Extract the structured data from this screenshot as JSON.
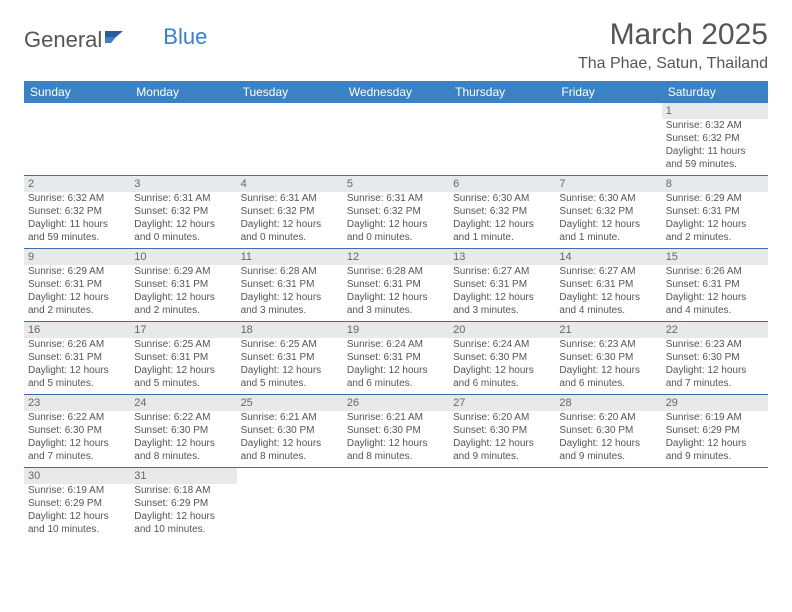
{
  "logo": {
    "general": "General",
    "blue": "Blue"
  },
  "title": "March 2025",
  "location": "Tha Phae, Satun, Thailand",
  "colors": {
    "header_bg": "#3b82c4",
    "header_text": "#ffffff",
    "daynum_bg": "#e8e9ea",
    "row_border": "#3b6fa8",
    "body_text": "#555555",
    "page_bg": "#ffffff"
  },
  "layout": {
    "columns": 7,
    "rows": 6
  },
  "dayHeaders": [
    "Sunday",
    "Monday",
    "Tuesday",
    "Wednesday",
    "Thursday",
    "Friday",
    "Saturday"
  ],
  "weeks": [
    [
      {
        "n": "",
        "sr": "",
        "ss": "",
        "dl": ""
      },
      {
        "n": "",
        "sr": "",
        "ss": "",
        "dl": ""
      },
      {
        "n": "",
        "sr": "",
        "ss": "",
        "dl": ""
      },
      {
        "n": "",
        "sr": "",
        "ss": "",
        "dl": ""
      },
      {
        "n": "",
        "sr": "",
        "ss": "",
        "dl": ""
      },
      {
        "n": "",
        "sr": "",
        "ss": "",
        "dl": ""
      },
      {
        "n": "1",
        "sr": "Sunrise: 6:32 AM",
        "ss": "Sunset: 6:32 PM",
        "dl": "Daylight: 11 hours and 59 minutes."
      }
    ],
    [
      {
        "n": "2",
        "sr": "Sunrise: 6:32 AM",
        "ss": "Sunset: 6:32 PM",
        "dl": "Daylight: 11 hours and 59 minutes."
      },
      {
        "n": "3",
        "sr": "Sunrise: 6:31 AM",
        "ss": "Sunset: 6:32 PM",
        "dl": "Daylight: 12 hours and 0 minutes."
      },
      {
        "n": "4",
        "sr": "Sunrise: 6:31 AM",
        "ss": "Sunset: 6:32 PM",
        "dl": "Daylight: 12 hours and 0 minutes."
      },
      {
        "n": "5",
        "sr": "Sunrise: 6:31 AM",
        "ss": "Sunset: 6:32 PM",
        "dl": "Daylight: 12 hours and 0 minutes."
      },
      {
        "n": "6",
        "sr": "Sunrise: 6:30 AM",
        "ss": "Sunset: 6:32 PM",
        "dl": "Daylight: 12 hours and 1 minute."
      },
      {
        "n": "7",
        "sr": "Sunrise: 6:30 AM",
        "ss": "Sunset: 6:32 PM",
        "dl": "Daylight: 12 hours and 1 minute."
      },
      {
        "n": "8",
        "sr": "Sunrise: 6:29 AM",
        "ss": "Sunset: 6:31 PM",
        "dl": "Daylight: 12 hours and 2 minutes."
      }
    ],
    [
      {
        "n": "9",
        "sr": "Sunrise: 6:29 AM",
        "ss": "Sunset: 6:31 PM",
        "dl": "Daylight: 12 hours and 2 minutes."
      },
      {
        "n": "10",
        "sr": "Sunrise: 6:29 AM",
        "ss": "Sunset: 6:31 PM",
        "dl": "Daylight: 12 hours and 2 minutes."
      },
      {
        "n": "11",
        "sr": "Sunrise: 6:28 AM",
        "ss": "Sunset: 6:31 PM",
        "dl": "Daylight: 12 hours and 3 minutes."
      },
      {
        "n": "12",
        "sr": "Sunrise: 6:28 AM",
        "ss": "Sunset: 6:31 PM",
        "dl": "Daylight: 12 hours and 3 minutes."
      },
      {
        "n": "13",
        "sr": "Sunrise: 6:27 AM",
        "ss": "Sunset: 6:31 PM",
        "dl": "Daylight: 12 hours and 3 minutes."
      },
      {
        "n": "14",
        "sr": "Sunrise: 6:27 AM",
        "ss": "Sunset: 6:31 PM",
        "dl": "Daylight: 12 hours and 4 minutes."
      },
      {
        "n": "15",
        "sr": "Sunrise: 6:26 AM",
        "ss": "Sunset: 6:31 PM",
        "dl": "Daylight: 12 hours and 4 minutes."
      }
    ],
    [
      {
        "n": "16",
        "sr": "Sunrise: 6:26 AM",
        "ss": "Sunset: 6:31 PM",
        "dl": "Daylight: 12 hours and 5 minutes."
      },
      {
        "n": "17",
        "sr": "Sunrise: 6:25 AM",
        "ss": "Sunset: 6:31 PM",
        "dl": "Daylight: 12 hours and 5 minutes."
      },
      {
        "n": "18",
        "sr": "Sunrise: 6:25 AM",
        "ss": "Sunset: 6:31 PM",
        "dl": "Daylight: 12 hours and 5 minutes."
      },
      {
        "n": "19",
        "sr": "Sunrise: 6:24 AM",
        "ss": "Sunset: 6:31 PM",
        "dl": "Daylight: 12 hours and 6 minutes."
      },
      {
        "n": "20",
        "sr": "Sunrise: 6:24 AM",
        "ss": "Sunset: 6:30 PM",
        "dl": "Daylight: 12 hours and 6 minutes."
      },
      {
        "n": "21",
        "sr": "Sunrise: 6:23 AM",
        "ss": "Sunset: 6:30 PM",
        "dl": "Daylight: 12 hours and 6 minutes."
      },
      {
        "n": "22",
        "sr": "Sunrise: 6:23 AM",
        "ss": "Sunset: 6:30 PM",
        "dl": "Daylight: 12 hours and 7 minutes."
      }
    ],
    [
      {
        "n": "23",
        "sr": "Sunrise: 6:22 AM",
        "ss": "Sunset: 6:30 PM",
        "dl": "Daylight: 12 hours and 7 minutes."
      },
      {
        "n": "24",
        "sr": "Sunrise: 6:22 AM",
        "ss": "Sunset: 6:30 PM",
        "dl": "Daylight: 12 hours and 8 minutes."
      },
      {
        "n": "25",
        "sr": "Sunrise: 6:21 AM",
        "ss": "Sunset: 6:30 PM",
        "dl": "Daylight: 12 hours and 8 minutes."
      },
      {
        "n": "26",
        "sr": "Sunrise: 6:21 AM",
        "ss": "Sunset: 6:30 PM",
        "dl": "Daylight: 12 hours and 8 minutes."
      },
      {
        "n": "27",
        "sr": "Sunrise: 6:20 AM",
        "ss": "Sunset: 6:30 PM",
        "dl": "Daylight: 12 hours and 9 minutes."
      },
      {
        "n": "28",
        "sr": "Sunrise: 6:20 AM",
        "ss": "Sunset: 6:30 PM",
        "dl": "Daylight: 12 hours and 9 minutes."
      },
      {
        "n": "29",
        "sr": "Sunrise: 6:19 AM",
        "ss": "Sunset: 6:29 PM",
        "dl": "Daylight: 12 hours and 9 minutes."
      }
    ],
    [
      {
        "n": "30",
        "sr": "Sunrise: 6:19 AM",
        "ss": "Sunset: 6:29 PM",
        "dl": "Daylight: 12 hours and 10 minutes."
      },
      {
        "n": "31",
        "sr": "Sunrise: 6:18 AM",
        "ss": "Sunset: 6:29 PM",
        "dl": "Daylight: 12 hours and 10 minutes."
      },
      {
        "n": "",
        "sr": "",
        "ss": "",
        "dl": ""
      },
      {
        "n": "",
        "sr": "",
        "ss": "",
        "dl": ""
      },
      {
        "n": "",
        "sr": "",
        "ss": "",
        "dl": ""
      },
      {
        "n": "",
        "sr": "",
        "ss": "",
        "dl": ""
      },
      {
        "n": "",
        "sr": "",
        "ss": "",
        "dl": ""
      }
    ]
  ]
}
